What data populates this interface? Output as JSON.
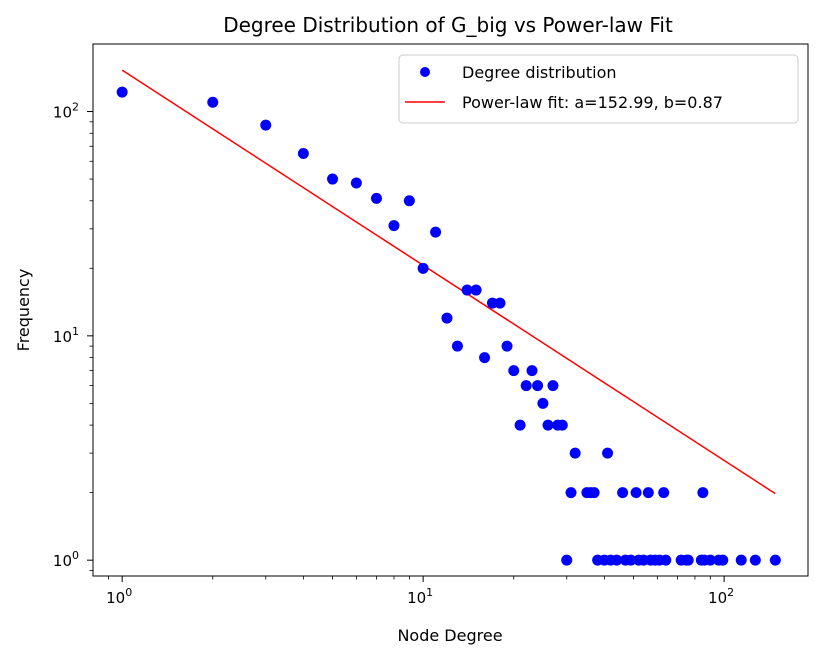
{
  "chart_data": {
    "type": "scatter",
    "title": "Degree Distribution of G_big vs Power-law Fit",
    "xlabel": "Node Degree",
    "ylabel": "Frequency",
    "xscale": "log",
    "yscale": "log",
    "xlim": [
      0.8,
      190
    ],
    "ylim": [
      0.85,
      200
    ],
    "x_ticks": [
      {
        "value": 1,
        "base": "10",
        "exp": "0"
      },
      {
        "value": 10,
        "base": "10",
        "exp": "1"
      },
      {
        "value": 100,
        "base": "10",
        "exp": "2"
      }
    ],
    "y_ticks": [
      {
        "value": 1,
        "base": "10",
        "exp": "0"
      },
      {
        "value": 10,
        "base": "10",
        "exp": "1"
      },
      {
        "value": 100,
        "base": "10",
        "exp": "2"
      }
    ],
    "legend_position": "top-right",
    "series": [
      {
        "name": "Degree distribution",
        "kind": "scatter",
        "color": "#0000ff",
        "points": [
          [
            1,
            122
          ],
          [
            2,
            110
          ],
          [
            3,
            87
          ],
          [
            4,
            65
          ],
          [
            5,
            50
          ],
          [
            6,
            48
          ],
          [
            7,
            41
          ],
          [
            8,
            31
          ],
          [
            9,
            40
          ],
          [
            10,
            20
          ],
          [
            11,
            29
          ],
          [
            12,
            12
          ],
          [
            13,
            9
          ],
          [
            14,
            16
          ],
          [
            15,
            16
          ],
          [
            16,
            8
          ],
          [
            17,
            14
          ],
          [
            18,
            14
          ],
          [
            19,
            9
          ],
          [
            20,
            7
          ],
          [
            21,
            4
          ],
          [
            22,
            6
          ],
          [
            23,
            7
          ],
          [
            24,
            6
          ],
          [
            25,
            5
          ],
          [
            26,
            4
          ],
          [
            27,
            6
          ],
          [
            28,
            4
          ],
          [
            29,
            4
          ],
          [
            30,
            1
          ],
          [
            31,
            2
          ],
          [
            32,
            3
          ],
          [
            35,
            2
          ],
          [
            36,
            2
          ],
          [
            37,
            2
          ],
          [
            38,
            1
          ],
          [
            40,
            1
          ],
          [
            41,
            3
          ],
          [
            42,
            1
          ],
          [
            44,
            1
          ],
          [
            46,
            2
          ],
          [
            47,
            1
          ],
          [
            49,
            1
          ],
          [
            51,
            2
          ],
          [
            52,
            1
          ],
          [
            54,
            1
          ],
          [
            56,
            2
          ],
          [
            57,
            1
          ],
          [
            59,
            1
          ],
          [
            61,
            1
          ],
          [
            63,
            2
          ],
          [
            64,
            1
          ],
          [
            72,
            1
          ],
          [
            75,
            1
          ],
          [
            76,
            1
          ],
          [
            84,
            1
          ],
          [
            85,
            2
          ],
          [
            86,
            1
          ],
          [
            90,
            1
          ],
          [
            96,
            1
          ],
          [
            99,
            1
          ],
          [
            114,
            1
          ],
          [
            127,
            1
          ],
          [
            148,
            1
          ]
        ]
      },
      {
        "name": "Power-law fit: a=152.99, b=0.87",
        "kind": "line",
        "color": "#ff0000",
        "a": 152.99,
        "b": 0.87,
        "x_range": [
          1,
          148
        ]
      }
    ]
  }
}
